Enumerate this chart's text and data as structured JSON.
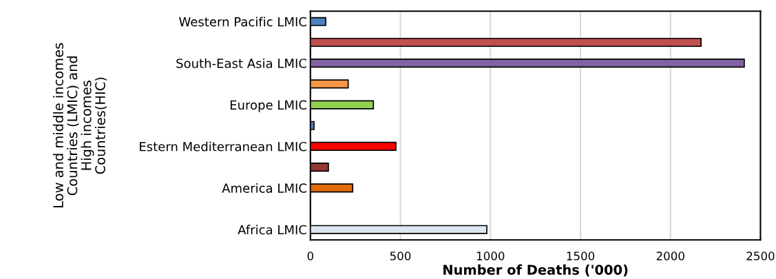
{
  "chart_data": {
    "type": "bar",
    "orientation": "horizontal",
    "xlabel": "Number of Deaths ('000)",
    "ylabel": "Low and middle incomes Countries (LMIC) and High incomes Countries(HIC)",
    "categories": [
      "Western Pacific LMIC",
      null,
      "South-East Asia LMIC",
      null,
      "Europe LMIC",
      null,
      "Estern Mediterranean LMIC",
      null,
      "America LMIC",
      null,
      "Africa LMIC"
    ],
    "values": [
      85,
      2170,
      2410,
      210,
      350,
      20,
      475,
      100,
      235,
      null,
      980
    ],
    "colors": [
      "#4f81bd",
      "#c0504d",
      "#8064a2",
      "#f79646",
      "#92d050",
      "#4f81bd",
      "#ff0000",
      "#953735",
      "#e36c09",
      "#ffffff",
      "#dce6f2"
    ],
    "xlim": [
      0,
      2500
    ],
    "xticks": [
      0,
      500,
      1000,
      1500,
      2000,
      2500
    ],
    "grid": "x"
  }
}
